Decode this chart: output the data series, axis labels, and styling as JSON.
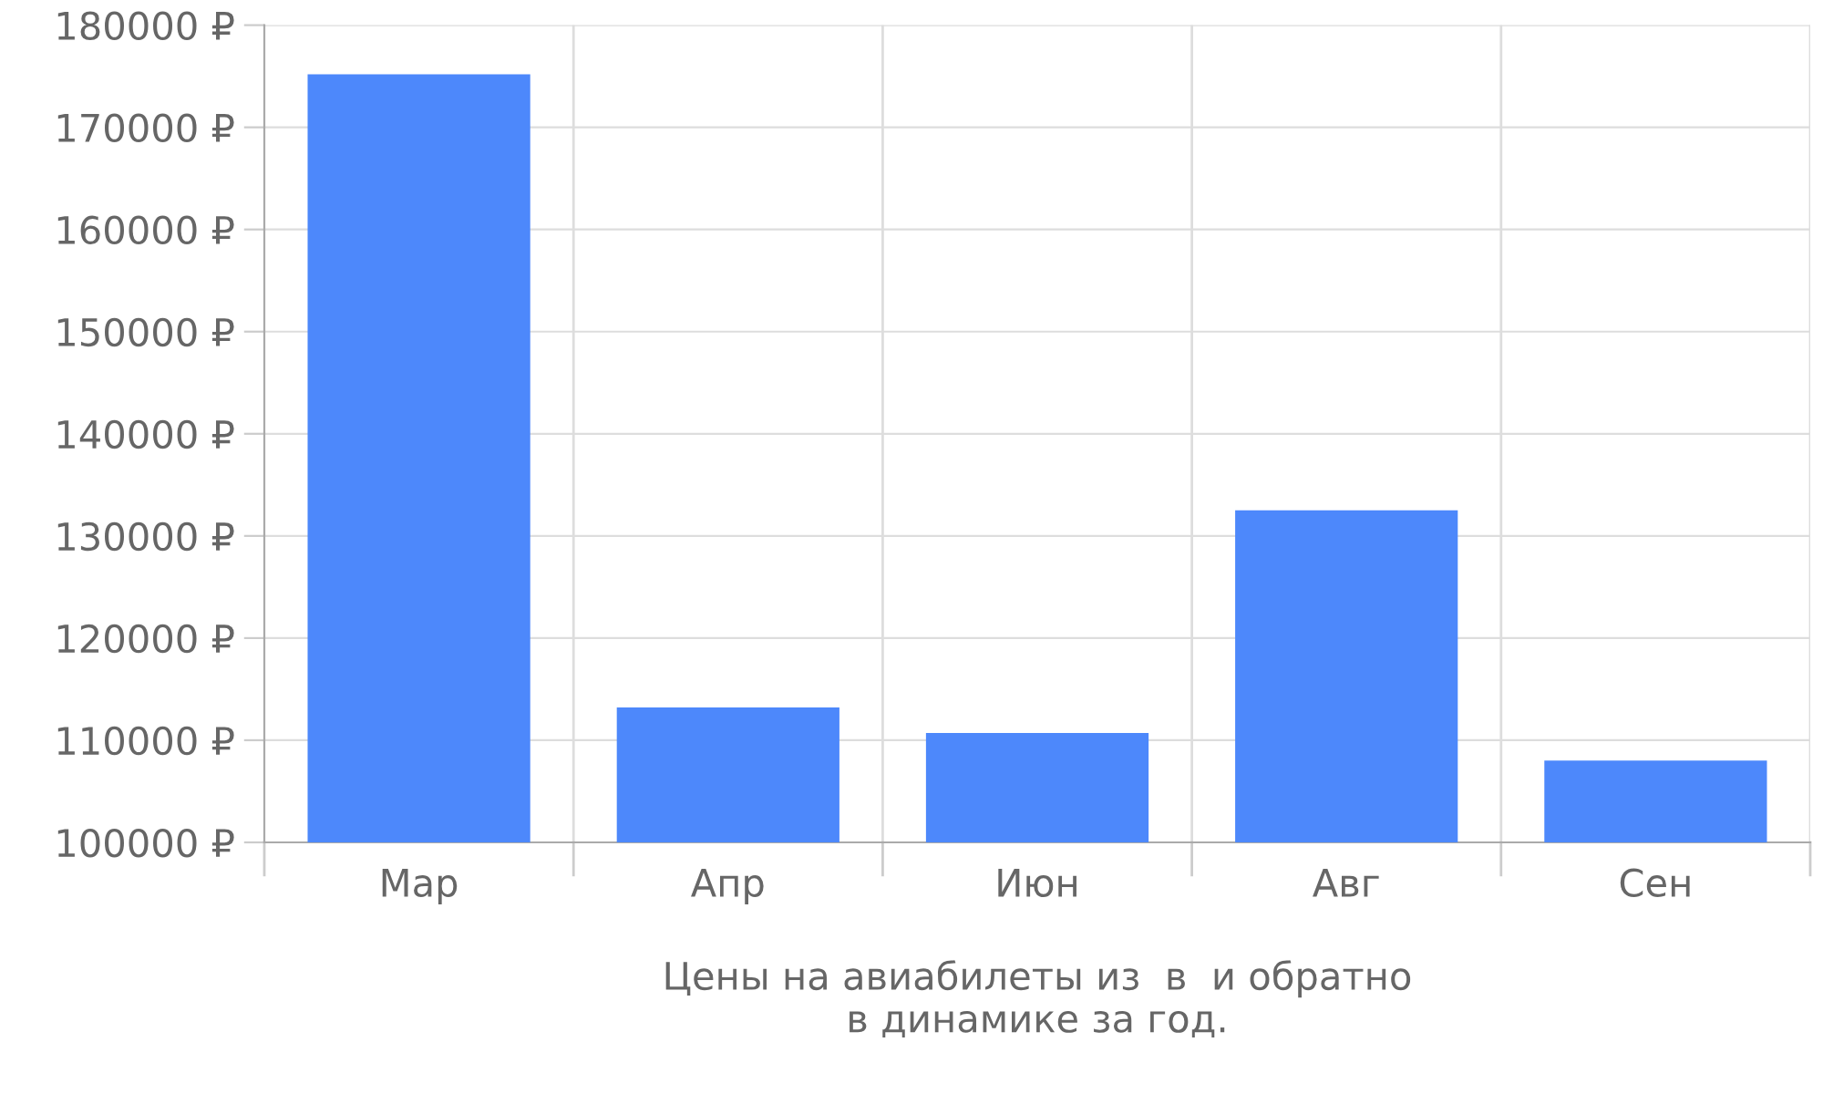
{
  "chart_data": {
    "type": "bar",
    "categories": [
      "Мар",
      "Апр",
      "Июн",
      "Авг",
      "Сен"
    ],
    "values": [
      175200,
      113200,
      110700,
      132500,
      108000
    ],
    "color": "#4d88fb",
    "ylim": [
      100000,
      180000
    ],
    "yticks": [
      {
        "value": 100000,
        "label": "100000 ₽"
      },
      {
        "value": 110000,
        "label": "110000 ₽"
      },
      {
        "value": 120000,
        "label": "120000 ₽"
      },
      {
        "value": 130000,
        "label": "130000 ₽"
      },
      {
        "value": 140000,
        "label": "140000 ₽"
      },
      {
        "value": 150000,
        "label": "150000 ₽"
      },
      {
        "value": 160000,
        "label": "160000 ₽"
      },
      {
        "value": 170000,
        "label": "170000 ₽"
      },
      {
        "value": 180000,
        "label": "180000 ₽"
      }
    ],
    "xlabel": "Цены на авиабилеты из  в  и обратно\nв динамике за год.",
    "grid": true
  }
}
